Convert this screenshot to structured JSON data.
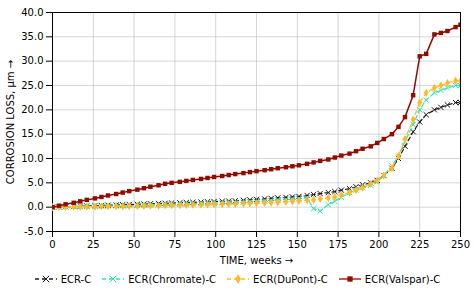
{
  "chart_data": {
    "type": "line",
    "xlabel": "TIME, weeks",
    "ylabel": "CORROSION LOSS, µm",
    "xlim": [
      0,
      250
    ],
    "ylim": [
      -5.0,
      40.0
    ],
    "xticks": [
      0,
      25,
      50,
      75,
      100,
      125,
      150,
      175,
      200,
      225,
      250
    ],
    "yticks": [
      {
        "value": -5.0,
        "label": "-5.0"
      },
      {
        "value": 0.0,
        "label": "0.0"
      },
      {
        "value": 5.0,
        "label": "5.0"
      },
      {
        "value": 10.0,
        "label": "10.0"
      },
      {
        "value": 15.0,
        "label": "15.0"
      },
      {
        "value": 20.0,
        "label": "20.0"
      },
      {
        "value": 25.0,
        "label": "25.0"
      },
      {
        "value": 30.0,
        "label": "30.0"
      },
      {
        "value": 35.0,
        "label": "35.0"
      },
      {
        "value": 40.0,
        "label": "40.0"
      }
    ],
    "grid": true,
    "legend": "bottom",
    "x": [
      0,
      4,
      8,
      13,
      17,
      21,
      26,
      30,
      34,
      39,
      43,
      47,
      52,
      56,
      60,
      65,
      69,
      73,
      78,
      82,
      86,
      91,
      95,
      99,
      104,
      108,
      112,
      117,
      121,
      125,
      130,
      134,
      138,
      143,
      147,
      151,
      156,
      160,
      164,
      169,
      173,
      177,
      182,
      186,
      190,
      195,
      199,
      203,
      208,
      212,
      216,
      221,
      225,
      229,
      234,
      238,
      242,
      247,
      250
    ],
    "series": [
      {
        "name": "ECR-C",
        "marker": "x",
        "line_style": "dashed",
        "values": [
          0,
          0.05,
          0.1,
          0.15,
          0.2,
          0.25,
          0.3,
          0.35,
          0.4,
          0.45,
          0.5,
          0.55,
          0.6,
          0.65,
          0.7,
          0.75,
          0.8,
          0.85,
          0.9,
          0.95,
          1.0,
          1.05,
          1.1,
          1.15,
          1.2,
          1.25,
          1.3,
          1.4,
          1.5,
          1.6,
          1.7,
          1.8,
          1.9,
          2.0,
          2.1,
          2.2,
          2.4,
          2.6,
          2.8,
          3.0,
          3.2,
          3.5,
          3.8,
          4.2,
          4.6,
          5.0,
          5.5,
          6.5,
          8.0,
          10.0,
          12.5,
          15.5,
          17.5,
          19.0,
          20.0,
          20.5,
          21.0,
          21.5,
          21.5
        ]
      },
      {
        "name": "ECR(Chromate)-C",
        "marker": "x",
        "line_style": "dashed",
        "values": [
          0,
          0.05,
          0.1,
          0.12,
          0.14,
          0.16,
          0.18,
          0.2,
          0.22,
          0.25,
          0.28,
          0.3,
          0.35,
          0.38,
          0.42,
          0.45,
          0.5,
          0.55,
          0.6,
          0.65,
          0.7,
          0.75,
          0.8,
          0.85,
          0.9,
          0.95,
          1.0,
          1.05,
          1.1,
          1.2,
          1.3,
          1.4,
          1.5,
          1.6,
          1.7,
          1.8,
          1.9,
          -0.3,
          -0.8,
          0.5,
          1.2,
          2.0,
          3.0,
          3.5,
          4.0,
          4.5,
          5.2,
          6.5,
          8.5,
          10.5,
          13.5,
          17.0,
          20.0,
          22.0,
          23.5,
          24.0,
          24.5,
          25.0,
          25.0
        ]
      },
      {
        "name": "ECR(DuPont)-C",
        "marker": "diamond",
        "line_style": "dashed",
        "values": [
          0,
          0.03,
          0.05,
          0.07,
          0.09,
          0.1,
          0.12,
          0.14,
          0.16,
          0.18,
          0.2,
          0.22,
          0.25,
          0.28,
          0.3,
          0.33,
          0.36,
          0.4,
          0.43,
          0.46,
          0.5,
          0.53,
          0.56,
          0.6,
          0.63,
          0.67,
          0.7,
          0.75,
          0.8,
          0.85,
          0.9,
          0.95,
          1.0,
          1.1,
          1.2,
          1.3,
          1.4,
          1.5,
          1.7,
          1.9,
          2.1,
          2.5,
          3.0,
          3.5,
          4.0,
          4.8,
          5.5,
          6.5,
          8.0,
          10.5,
          14.0,
          18.0,
          21.5,
          23.5,
          24.5,
          25.0,
          25.5,
          26.0,
          26.0
        ]
      },
      {
        "name": "ECR(Valspar)-C",
        "marker": "square",
        "line_style": "solid",
        "values": [
          0,
          0.3,
          0.6,
          0.9,
          1.2,
          1.5,
          1.8,
          2.1,
          2.4,
          2.7,
          3.0,
          3.3,
          3.6,
          3.9,
          4.2,
          4.5,
          4.8,
          5.0,
          5.2,
          5.4,
          5.6,
          5.8,
          6.0,
          6.2,
          6.4,
          6.6,
          6.8,
          7.0,
          7.2,
          7.4,
          7.6,
          7.8,
          8.0,
          8.2,
          8.4,
          8.6,
          8.9,
          9.2,
          9.5,
          9.8,
          10.2,
          10.6,
          11.0,
          11.5,
          12.0,
          12.5,
          13.2,
          14.0,
          15.0,
          16.5,
          18.5,
          23.0,
          31.0,
          31.5,
          35.5,
          35.8,
          36.2,
          37.0,
          37.5
        ]
      }
    ]
  }
}
